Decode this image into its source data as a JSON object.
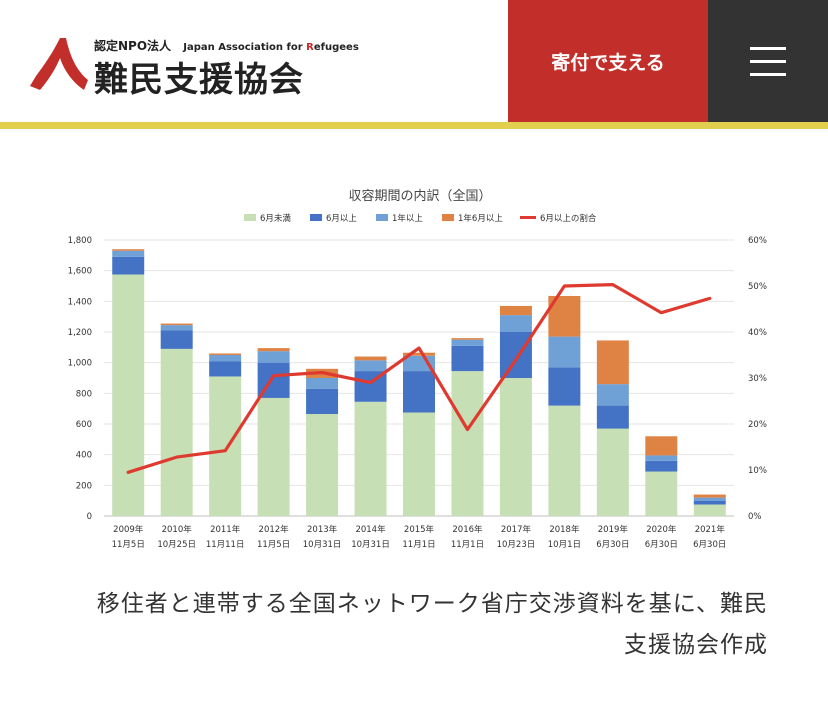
{
  "header": {
    "logo_small": "認定NPO法人",
    "logo_en_prefix": "Japan Association for ",
    "logo_en_r": "R",
    "logo_en_suffix": "efugees",
    "logo_name": "難民支援協会",
    "donate_label": "寄付で支える",
    "menu_icon": "hamburger-menu-icon",
    "colors": {
      "brand_red": "#c22f2a",
      "menu_bg": "#333333",
      "accent_yellow": "#e3cf4e"
    }
  },
  "chart_data": {
    "type": "bar",
    "stacked": true,
    "title": "収容期間の内訳（全国）",
    "categories": [
      [
        "2009年",
        "11月5日"
      ],
      [
        "2010年",
        "10月25日"
      ],
      [
        "2011年",
        "11月11日"
      ],
      [
        "2012年",
        "11月5日"
      ],
      [
        "2013年",
        "10月31日"
      ],
      [
        "2014年",
        "10月31日"
      ],
      [
        "2015年",
        "11月1日"
      ],
      [
        "2016年",
        "11月1日"
      ],
      [
        "2017年",
        "10月23日"
      ],
      [
        "2018年",
        "10月1日"
      ],
      [
        "2019年",
        "6月30日"
      ],
      [
        "2020年",
        "6月30日"
      ],
      [
        "2021年",
        "6月30日"
      ]
    ],
    "series": [
      {
        "name": "6月未満",
        "color": "#c6dfb4",
        "values": [
          1575,
          1090,
          910,
          770,
          665,
          745,
          675,
          945,
          900,
          720,
          570,
          290,
          75
        ]
      },
      {
        "name": "6月以上",
        "color": "#4472c4",
        "values": [
          115,
          120,
          100,
          230,
          165,
          200,
          270,
          165,
          300,
          250,
          150,
          70,
          25
        ]
      },
      {
        "name": "1年以上",
        "color": "#6fa0d6",
        "values": [
          40,
          35,
          40,
          75,
          70,
          70,
          100,
          40,
          110,
          200,
          140,
          35,
          20
        ]
      },
      {
        "name": "1年6月以上",
        "color": "#df8345",
        "values": [
          10,
          10,
          10,
          20,
          60,
          25,
          20,
          10,
          60,
          265,
          285,
          125,
          20
        ]
      }
    ],
    "line": {
      "name": "6月以上の割合",
      "color": "#df3a2f",
      "values": [
        9.5,
        12.8,
        14.2,
        30.5,
        31.2,
        29,
        36.5,
        18.8,
        34,
        50,
        50.3,
        44.2,
        47.3
      ]
    },
    "y_left": {
      "min": 0,
      "max": 1800,
      "step": 200,
      "ticks": [
        "0",
        "200",
        "400",
        "600",
        "800",
        "1,000",
        "1,200",
        "1,400",
        "1,600",
        "1,800"
      ]
    },
    "y_right": {
      "min": 0,
      "max": 60,
      "step": 10,
      "ticks": [
        "0%",
        "10%",
        "20%",
        "30%",
        "40%",
        "50%",
        "60%"
      ]
    },
    "grid": true,
    "legend_position": "top"
  },
  "caption": {
    "line1": "移住者と連帯する全国ネットワーク省庁交渉資料を基に、難民",
    "line2": "支援協会作成"
  }
}
